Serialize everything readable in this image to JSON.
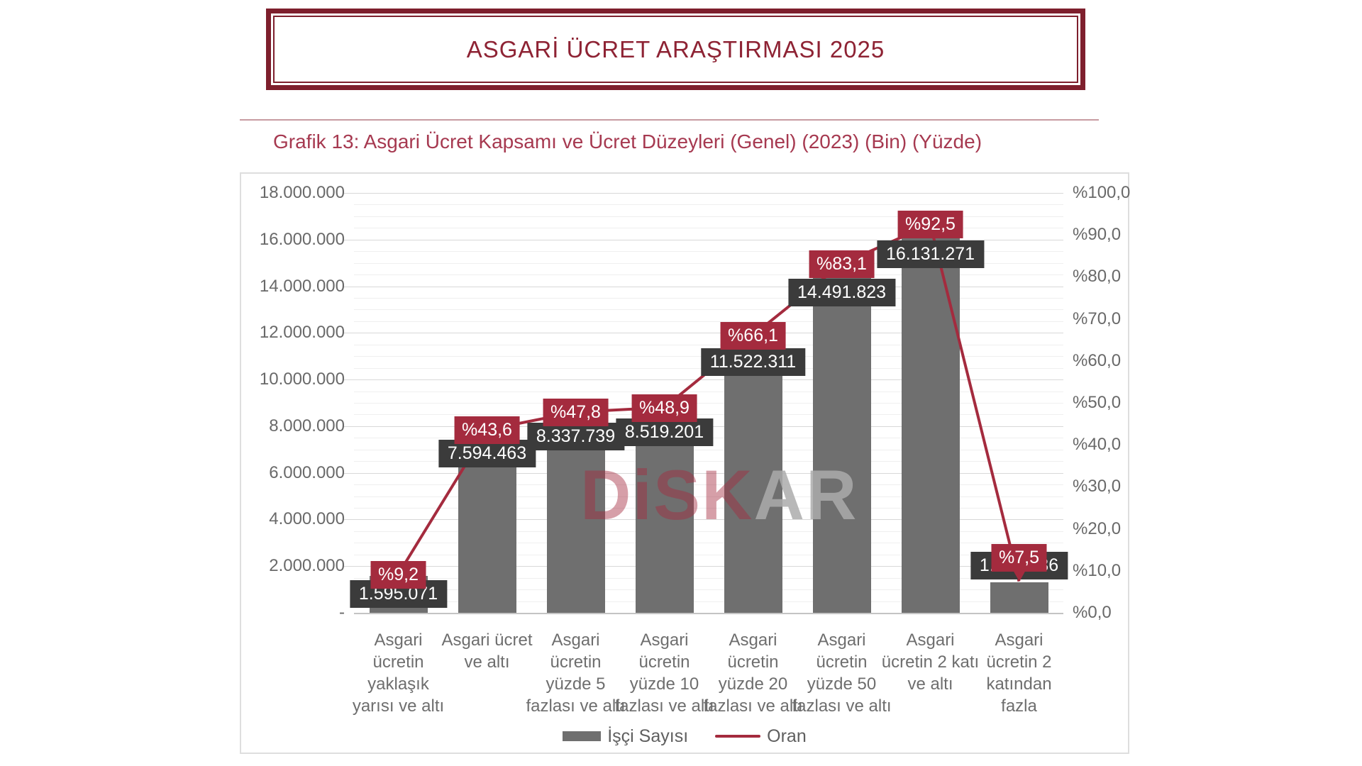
{
  "header": {
    "title": "ASGARİ ÜCRET ARAŞTIRMASI 2025"
  },
  "subtitle": "Grafik 13: Asgari Ücret Kapsamı ve Ücret Düzeyleri (Genel) (2023) (Bin) (Yüzde)",
  "watermark": {
    "red_part": "DiSK",
    "gray_part": "AR"
  },
  "colors": {
    "title_red": "#8E2334",
    "accent_red": "#A42B3E",
    "bar_gray": "#6F6F6F",
    "value_label_bg": "#3B3B3B"
  },
  "chart_data": {
    "type": "bar",
    "subtype": "bar+line combo, secondary percentage axis",
    "title": "Grafik 13: Asgari Ücret Kapsamı ve Ücret Düzeyleri (Genel) (2023) (Bin) (Yüzde)",
    "categories": [
      "Asgari ücretin yaklaşık yarısı ve altı",
      "Asgari ücret ve altı",
      "Asgari ücretin yüzde 5 fazlası ve altı",
      "Asgari ücretin yüzde 10 fazlası ve altı",
      "Asgari ücretin yüzde 20 fazlası ve altı",
      "Asgari ücretin yüzde 50 fazlası ve altı",
      "Asgari ücretin 2 katı ve altı",
      "Asgari ücretin 2 katından fazla"
    ],
    "category_lines": [
      [
        "Asgari",
        "ücretin",
        "yaklaşık",
        "yarısı ve altı"
      ],
      [
        "Asgari ücret",
        "ve altı"
      ],
      [
        "Asgari",
        "ücretin",
        "yüzde 5",
        "fazlası ve altı"
      ],
      [
        "Asgari",
        "ücretin",
        "yüzde 10",
        "fazlası ve altı"
      ],
      [
        "Asgari",
        "ücretin",
        "yüzde 20",
        "fazlası ve altı"
      ],
      [
        "Asgari",
        "ücretin",
        "yüzde 50",
        "fazlası ve altı"
      ],
      [
        "Asgari",
        "ücretin 2 katı",
        "ve altı"
      ],
      [
        "Asgari",
        "ücretin 2",
        "katından",
        "fazla"
      ]
    ],
    "series": [
      {
        "name": "İşçi Sayısı",
        "type": "bar",
        "axis": "left",
        "values": [
          1595071,
          7594463,
          8337739,
          8519201,
          11522311,
          14491823,
          16131271,
          1302036
        ],
        "labels": [
          "1.595.071",
          "7.594.463",
          "8.337.739",
          "8.519.201",
          "11.522.311",
          "14.491.823",
          "16.131.271",
          "1.302.036"
        ]
      },
      {
        "name": "Oran",
        "type": "line",
        "axis": "right",
        "values": [
          9.2,
          43.6,
          47.8,
          48.9,
          66.1,
          83.1,
          92.5,
          7.5
        ],
        "labels": [
          "%9,2",
          "%43,6",
          "%47,8",
          "%48,9",
          "%66,1",
          "%83,1",
          "%92,5",
          "%7,5"
        ]
      }
    ],
    "left_axis": {
      "min": 0,
      "max": 18000000,
      "major_step": 2000000,
      "minor_step": 500000,
      "tick_labels": [
        "18.000.000",
        "16.000.000",
        "14.000.000",
        "12.000.000",
        "10.000.000",
        "8.000.000",
        "6.000.000",
        "4.000.000",
        "2.000.000",
        "-"
      ]
    },
    "right_axis": {
      "min": 0,
      "max": 100,
      "major_step": 10,
      "tick_labels": [
        "%100,0",
        "%90,0",
        "%80,0",
        "%70,0",
        "%60,0",
        "%50,0",
        "%40,0",
        "%30,0",
        "%20,0",
        "%10,0",
        "%0,0"
      ]
    },
    "grid": true,
    "legend_position": "bottom",
    "legend": [
      {
        "label": "İşçi Sayısı",
        "swatch": "bar"
      },
      {
        "label": "Oran",
        "swatch": "line"
      }
    ]
  }
}
